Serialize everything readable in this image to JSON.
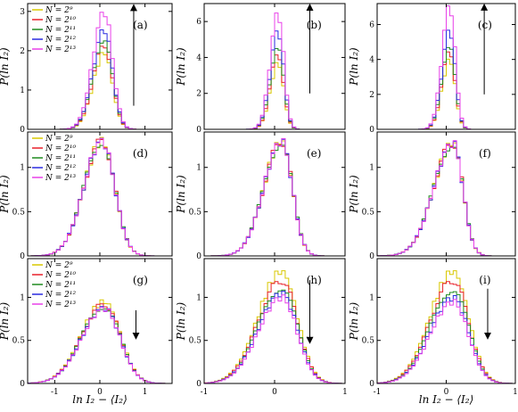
{
  "chart_data": {
    "type": "line",
    "step_style": "histogram",
    "ylabel": "P(ln I₂)",
    "xlabel": "ln I₂ − ⟨I₂⟩",
    "legend": {
      "placement": "top-left",
      "panels": [
        "a",
        "d",
        "g"
      ],
      "entries": [
        "N = 2⁹",
        "N = 2¹⁰",
        "N = 2¹¹",
        "N = 2¹²",
        "N = 2¹³"
      ]
    },
    "colors": [
      "#d8c800",
      "#e8202a",
      "#1f8a1f",
      "#2a2ae0",
      "#e840e8"
    ],
    "rows": [
      {
        "ylim": [
          0,
          3.2
        ],
        "yticks": [
          0,
          1,
          2,
          3
        ],
        "panels": [
          {
            "label": "(a)",
            "xlim": [
              -1.6,
              1.6
            ],
            "peak": 0.1,
            "peaks": [
              1.95,
              2.15,
              2.35,
              2.55,
              3.0
            ],
            "widthL": 0.25,
            "widthR": 0.18,
            "arrow": "up",
            "arrow_x": 0.75,
            "arrow_y": [
              0.6,
              3.1
            ],
            "xlabels": false
          },
          {
            "label": "(b)",
            "xlim": [
              -1,
              1
            ],
            "peak": 0.05,
            "peaks": [
              3.7,
              4.2,
              4.8,
              5.5,
              6.5
            ],
            "widthL": 0.11,
            "widthR": 0.08,
            "ylim": [
              0,
              7
            ],
            "yticks": [
              0,
              2,
              4,
              6
            ],
            "arrow": "up",
            "arrow_x": 0.5,
            "arrow_y": [
              2.0,
              6.8
            ],
            "xlabels": false
          },
          {
            "label": "(c)",
            "xlim": [
              -1,
              1
            ],
            "peak": 0.05,
            "peaks": [
              4.0,
              4.5,
              5.0,
              5.7,
              7.1
            ],
            "widthL": 0.11,
            "widthR": 0.08,
            "ylim": [
              0,
              7.2
            ],
            "yticks": [
              0,
              2,
              4,
              6
            ],
            "arrow": "up",
            "arrow_x": 0.55,
            "arrow_y": [
              2.0,
              7.0
            ],
            "xlabels": false
          }
        ]
      },
      {
        "ylim": [
          0,
          1.4
        ],
        "yticks": [
          0,
          0.5,
          1
        ],
        "panels": [
          {
            "label": "(d)",
            "xlim": [
              -1.6,
              1.6
            ],
            "peak": 0.05,
            "peaks": [
              1.3,
              1.3,
              1.3,
              1.3,
              1.3
            ],
            "widthL": 0.4,
            "widthR": 0.28,
            "arrow": "none",
            "xlabels": false
          },
          {
            "label": "(e)",
            "xlim": [
              -1,
              1
            ],
            "peak": 0.1,
            "peaks": [
              1.3,
              1.3,
              1.3,
              1.3,
              1.3
            ],
            "widthL": 0.25,
            "widthR": 0.15,
            "arrow": "none",
            "xlabels": false
          },
          {
            "label": "(f)",
            "xlim": [
              -1,
              1
            ],
            "peak": 0.1,
            "peaks": [
              1.28,
              1.28,
              1.28,
              1.28,
              1.28
            ],
            "widthL": 0.28,
            "widthR": 0.14,
            "arrow": "none",
            "xlabels": false
          }
        ]
      },
      {
        "ylim": [
          0,
          1.45
        ],
        "yticks": [
          0,
          0.5,
          1
        ],
        "panels": [
          {
            "label": "(g)",
            "xlim": [
              -1.6,
              1.6
            ],
            "peak": 0.1,
            "peaks": [
              0.95,
              0.92,
              0.9,
              0.88,
              0.87
            ],
            "widthL": 0.5,
            "widthR": 0.35,
            "arrow": "down",
            "arrow_x": 0.8,
            "arrow_y": [
              0.85,
              0.55
            ],
            "xlabels": true,
            "xticks": [
              -1,
              0,
              1
            ]
          },
          {
            "label": "(h)",
            "xlim": [
              -1,
              1
            ],
            "peak": 0.1,
            "peaks": [
              1.3,
              1.2,
              1.12,
              1.05,
              1.0
            ],
            "widthL": 0.33,
            "widthR": 0.22,
            "arrow": "down",
            "arrow_x": 0.5,
            "arrow_y": [
              1.2,
              0.5
            ],
            "xlabels": true,
            "xticks": [
              -1,
              0,
              1
            ]
          },
          {
            "label": "(i)",
            "xlim": [
              -1,
              1
            ],
            "peak": 0.1,
            "peaks": [
              1.3,
              1.2,
              1.1,
              1.0,
              0.95
            ],
            "widthL": 0.33,
            "widthR": 0.22,
            "arrow": "down",
            "arrow_x": 0.6,
            "arrow_y": [
              1.1,
              0.55
            ],
            "xlabels": true,
            "xticks": [
              -1,
              0,
              1
            ]
          }
        ]
      }
    ]
  }
}
